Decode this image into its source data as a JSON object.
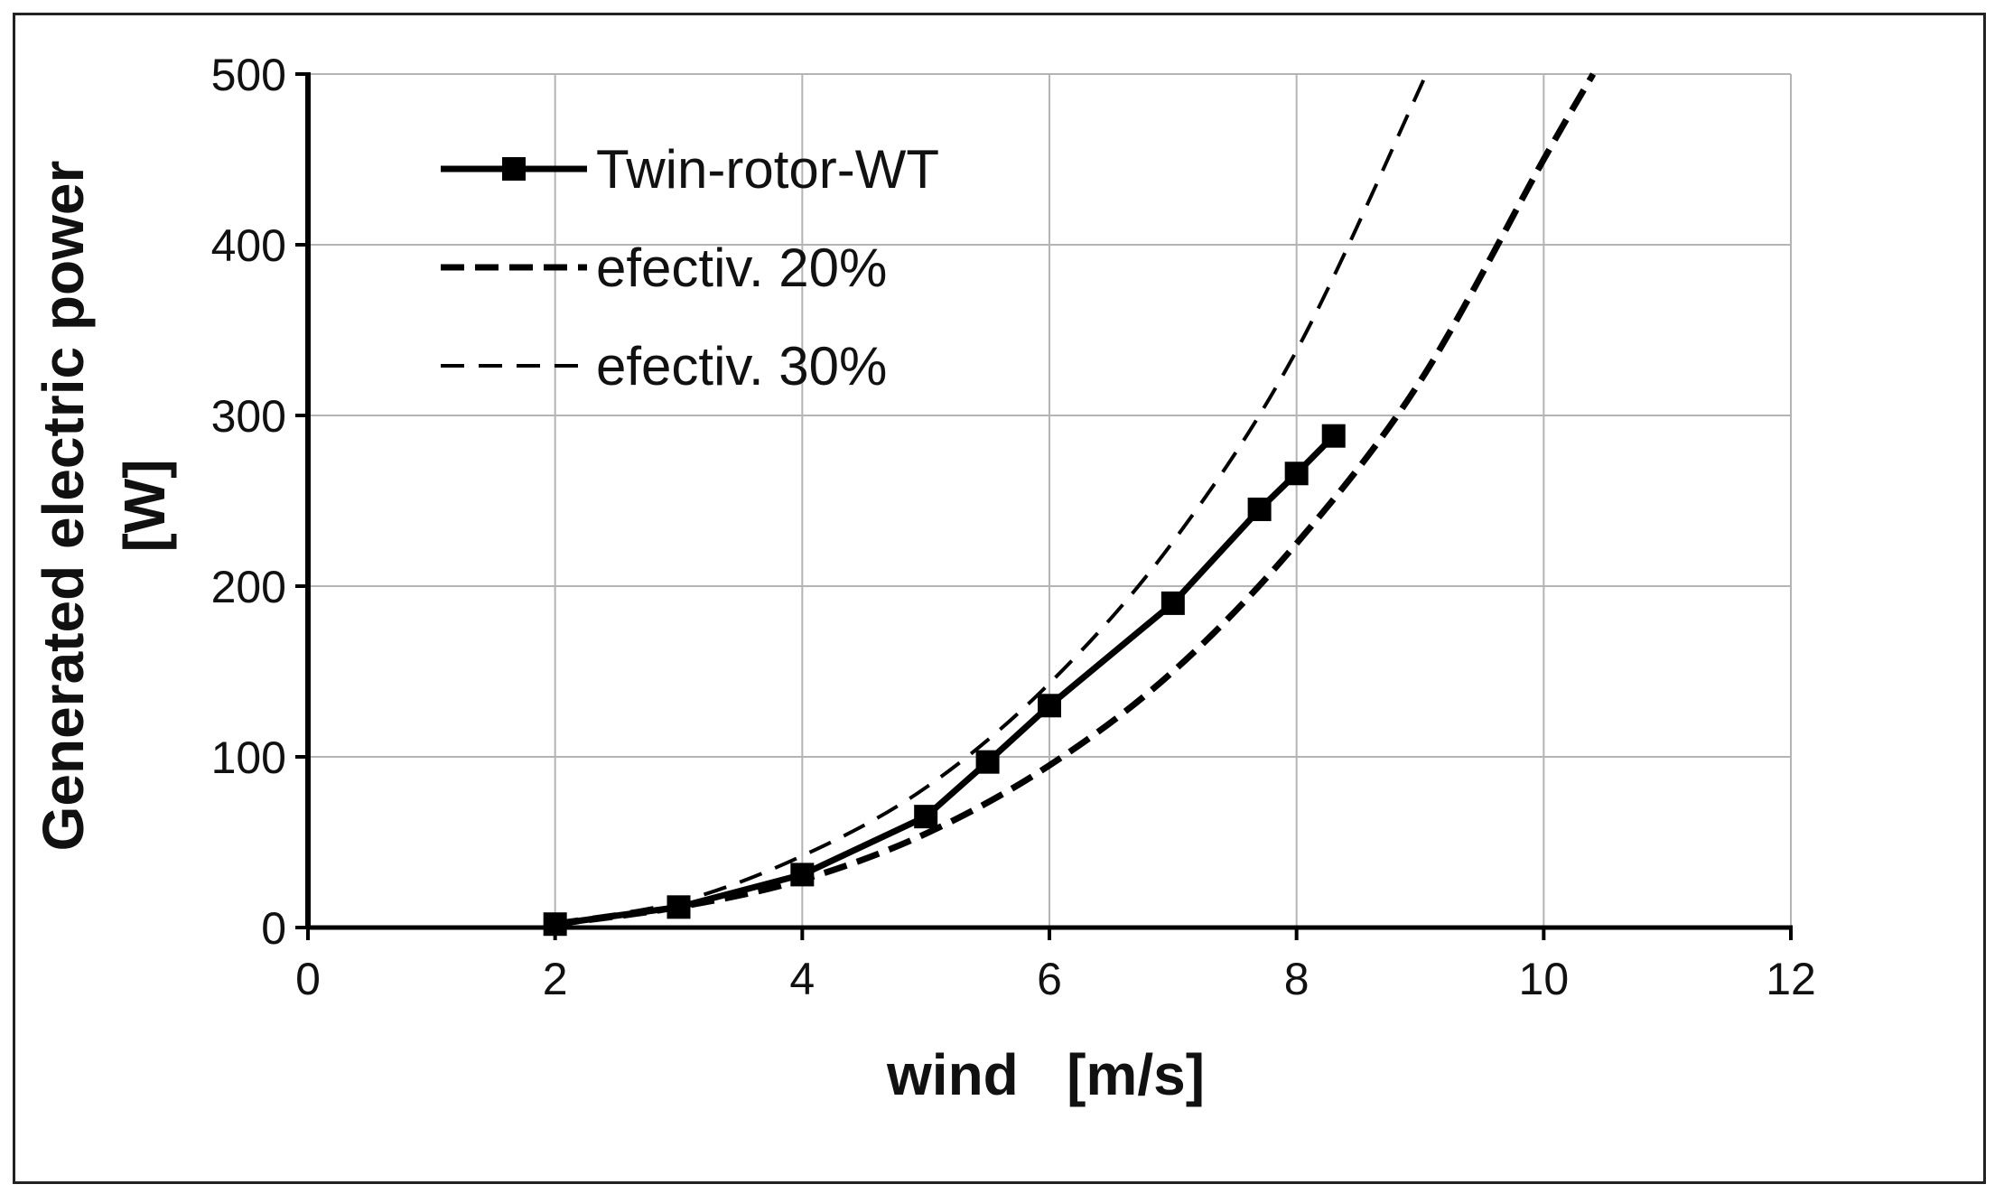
{
  "chart_data": {
    "type": "line",
    "xlabel": "wind   [m/s]",
    "ylabel_lines": [
      "Generated electric power",
      "[W]"
    ],
    "xlim": [
      0,
      12
    ],
    "ylim": [
      0,
      500
    ],
    "xticks": [
      0,
      2,
      4,
      6,
      8,
      10,
      12
    ],
    "yticks": [
      0,
      100,
      200,
      300,
      400,
      500
    ],
    "grid": true,
    "legend_position": "top-left",
    "series": [
      {
        "name": "Twin-rotor-WT",
        "style": "solid-square-markers",
        "color": "#000000",
        "x": [
          2,
          3,
          4,
          5,
          5.5,
          6,
          7,
          7.7,
          8,
          8.3
        ],
        "y": [
          2,
          12,
          31,
          65,
          97,
          130,
          190,
          245,
          266,
          288
        ]
      },
      {
        "name": "efectiv. 20%",
        "style": "thick-dashed",
        "color": "#000000",
        "x": [
          2,
          3,
          4,
          5,
          6,
          7,
          8,
          9,
          10,
          10.4
        ],
        "y": [
          2,
          12,
          28,
          55,
          95,
          150,
          225,
          320,
          450,
          500
        ]
      },
      {
        "name": "efectiv. 30%",
        "style": "thin-dashed",
        "color": "#000000",
        "x": [
          2,
          3,
          4,
          5,
          6,
          7,
          8,
          9.05
        ],
        "y": [
          3,
          15,
          42,
          82,
          143,
          226,
          338,
          500
        ]
      }
    ]
  }
}
